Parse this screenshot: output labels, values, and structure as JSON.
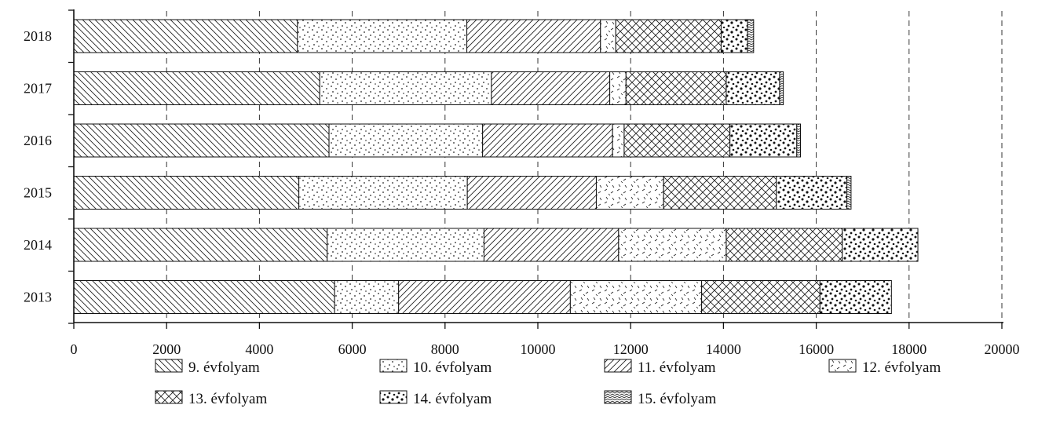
{
  "chart_data": {
    "type": "bar",
    "orientation": "horizontal",
    "stacked": true,
    "title": "",
    "xlabel": "",
    "ylabel": "",
    "categories": [
      "2018",
      "2017",
      "2016",
      "2015",
      "2014",
      "2013"
    ],
    "xlim": [
      0,
      20000
    ],
    "xticks": [
      0,
      2000,
      4000,
      6000,
      8000,
      10000,
      12000,
      14000,
      16000,
      18000,
      20000
    ],
    "grid": "vertical dashed",
    "legend_position": "bottom",
    "series": [
      {
        "name": "9. évfolyam",
        "pattern": "diag-back",
        "values": [
          4820,
          5300,
          5500,
          4850,
          5460,
          5620
        ]
      },
      {
        "name": "10. évfolyam",
        "pattern": "dots-fine",
        "values": [
          3650,
          3700,
          3310,
          3630,
          3380,
          1380
        ]
      },
      {
        "name": "11. évfolyam",
        "pattern": "diag-fwd",
        "values": [
          2880,
          2550,
          2800,
          2780,
          2900,
          3700
        ]
      },
      {
        "name": "12. évfolyam",
        "pattern": "dashes",
        "values": [
          330,
          350,
          250,
          1450,
          2320,
          2830
        ]
      },
      {
        "name": "13. évfolyam",
        "pattern": "crosshatch",
        "values": [
          2270,
          2160,
          2280,
          2430,
          2500,
          2550
        ]
      },
      {
        "name": "14. évfolyam",
        "pattern": "dots-bold",
        "values": [
          570,
          1150,
          1440,
          1520,
          1630,
          1540
        ]
      },
      {
        "name": "15. évfolyam",
        "pattern": "zigzag",
        "values": [
          130,
          80,
          80,
          90,
          0,
          0
        ]
      }
    ]
  }
}
